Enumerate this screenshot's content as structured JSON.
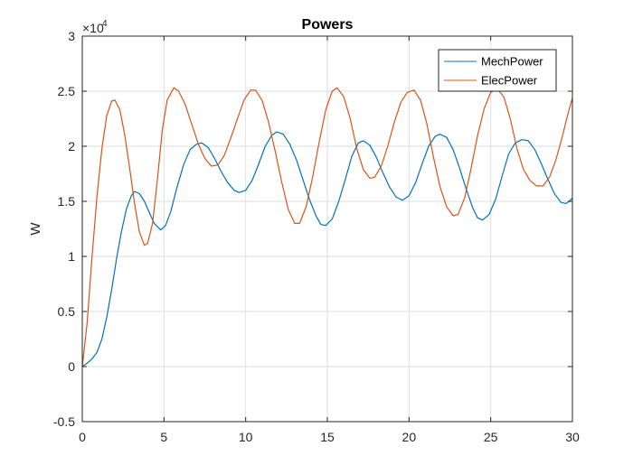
{
  "chart_data": {
    "type": "line",
    "title": "Powers",
    "xlabel": "",
    "ylabel": "W",
    "xlim": [
      0,
      30
    ],
    "ylim": [
      -5000,
      30000
    ],
    "x_ticks": [
      0,
      5,
      10,
      15,
      20,
      25,
      30
    ],
    "x_tick_labels": [
      "0",
      "5",
      "10",
      "15",
      "20",
      "25",
      "30"
    ],
    "y_ticks": [
      -5000,
      0,
      5000,
      10000,
      15000,
      20000,
      25000,
      30000
    ],
    "y_tick_labels": [
      "-0.5",
      "0",
      "0.5",
      "1",
      "1.5",
      "2",
      "2.5",
      "3"
    ],
    "y_exponent_base": "×10",
    "y_exponent_power": "4",
    "grid": true,
    "legend_position": "top-right",
    "series": [
      {
        "name": "MechPower",
        "color": "#0072BD",
        "points": [
          [
            0,
            0
          ],
          [
            0.3,
            300
          ],
          [
            0.6,
            700
          ],
          [
            0.9,
            1300
          ],
          [
            1.2,
            2500
          ],
          [
            1.5,
            4500
          ],
          [
            1.8,
            7000
          ],
          [
            2.1,
            9800
          ],
          [
            2.4,
            12300
          ],
          [
            2.7,
            14300
          ],
          [
            3.0,
            15500
          ],
          [
            3.2,
            15900
          ],
          [
            3.5,
            15700
          ],
          [
            3.8,
            15000
          ],
          [
            4.1,
            14000
          ],
          [
            4.4,
            13000
          ],
          [
            4.8,
            12400
          ],
          [
            5.1,
            12800
          ],
          [
            5.4,
            14000
          ],
          [
            5.8,
            16300
          ],
          [
            6.2,
            18300
          ],
          [
            6.6,
            19700
          ],
          [
            7.0,
            20200
          ],
          [
            7.3,
            20300
          ],
          [
            7.7,
            19900
          ],
          [
            8.1,
            18900
          ],
          [
            8.5,
            17700
          ],
          [
            8.9,
            16700
          ],
          [
            9.3,
            16000
          ],
          [
            9.6,
            15800
          ],
          [
            10.0,
            16000
          ],
          [
            10.4,
            16900
          ],
          [
            10.8,
            18400
          ],
          [
            11.2,
            20000
          ],
          [
            11.6,
            21000
          ],
          [
            11.9,
            21300
          ],
          [
            12.3,
            21100
          ],
          [
            12.7,
            20200
          ],
          [
            13.1,
            18800
          ],
          [
            13.5,
            17000
          ],
          [
            13.9,
            15200
          ],
          [
            14.3,
            13700
          ],
          [
            14.6,
            12900
          ],
          [
            14.9,
            12800
          ],
          [
            15.3,
            13400
          ],
          [
            15.7,
            15000
          ],
          [
            16.1,
            17000
          ],
          [
            16.5,
            19100
          ],
          [
            16.9,
            20300
          ],
          [
            17.2,
            20500
          ],
          [
            17.6,
            20100
          ],
          [
            18.0,
            19000
          ],
          [
            18.4,
            17600
          ],
          [
            18.8,
            16300
          ],
          [
            19.2,
            15400
          ],
          [
            19.6,
            15100
          ],
          [
            20.0,
            15500
          ],
          [
            20.4,
            16700
          ],
          [
            20.8,
            18400
          ],
          [
            21.2,
            20000
          ],
          [
            21.6,
            20900
          ],
          [
            21.9,
            21100
          ],
          [
            22.3,
            20800
          ],
          [
            22.7,
            19700
          ],
          [
            23.1,
            18000
          ],
          [
            23.5,
            16100
          ],
          [
            23.9,
            14400
          ],
          [
            24.2,
            13500
          ],
          [
            24.5,
            13300
          ],
          [
            24.9,
            13800
          ],
          [
            25.3,
            15200
          ],
          [
            25.7,
            17300
          ],
          [
            26.1,
            19300
          ],
          [
            26.5,
            20300
          ],
          [
            26.9,
            20600
          ],
          [
            27.3,
            20500
          ],
          [
            27.7,
            19700
          ],
          [
            28.1,
            18400
          ],
          [
            28.5,
            17000
          ],
          [
            28.9,
            15700
          ],
          [
            29.3,
            14900
          ],
          [
            29.6,
            14800
          ],
          [
            29.8,
            15000
          ],
          [
            30.0,
            15300
          ]
        ]
      },
      {
        "name": "ElecPower",
        "color": "#D95319",
        "points": [
          [
            0,
            0
          ],
          [
            0.3,
            4000
          ],
          [
            0.6,
            10000
          ],
          [
            0.9,
            15500
          ],
          [
            1.2,
            19800
          ],
          [
            1.5,
            22800
          ],
          [
            1.8,
            24100
          ],
          [
            2.0,
            24200
          ],
          [
            2.3,
            23300
          ],
          [
            2.6,
            21000
          ],
          [
            2.9,
            18000
          ],
          [
            3.2,
            14800
          ],
          [
            3.5,
            12200
          ],
          [
            3.8,
            11000
          ],
          [
            4.0,
            11200
          ],
          [
            4.3,
            13000
          ],
          [
            4.6,
            17000
          ],
          [
            4.9,
            21500
          ],
          [
            5.2,
            24200
          ],
          [
            5.6,
            25300
          ],
          [
            5.9,
            25000
          ],
          [
            6.3,
            23800
          ],
          [
            6.7,
            22000
          ],
          [
            7.1,
            20200
          ],
          [
            7.5,
            18900
          ],
          [
            7.9,
            18200
          ],
          [
            8.3,
            18300
          ],
          [
            8.7,
            19200
          ],
          [
            9.1,
            20800
          ],
          [
            9.5,
            22500
          ],
          [
            9.9,
            24200
          ],
          [
            10.3,
            25100
          ],
          [
            10.6,
            25100
          ],
          [
            11.0,
            24200
          ],
          [
            11.4,
            22200
          ],
          [
            11.8,
            19600
          ],
          [
            12.2,
            16800
          ],
          [
            12.6,
            14300
          ],
          [
            13.0,
            13000
          ],
          [
            13.3,
            13000
          ],
          [
            13.7,
            14500
          ],
          [
            14.1,
            17200
          ],
          [
            14.5,
            20400
          ],
          [
            14.9,
            23300
          ],
          [
            15.3,
            25000
          ],
          [
            15.6,
            25300
          ],
          [
            16.0,
            24500
          ],
          [
            16.4,
            22500
          ],
          [
            16.8,
            19800
          ],
          [
            17.2,
            17900
          ],
          [
            17.6,
            17100
          ],
          [
            17.9,
            17200
          ],
          [
            18.3,
            18200
          ],
          [
            18.7,
            20000
          ],
          [
            19.1,
            22200
          ],
          [
            19.5,
            24000
          ],
          [
            19.9,
            24900
          ],
          [
            20.3,
            25100
          ],
          [
            20.7,
            24200
          ],
          [
            21.1,
            22000
          ],
          [
            21.5,
            19000
          ],
          [
            21.9,
            16300
          ],
          [
            22.3,
            14500
          ],
          [
            22.7,
            13700
          ],
          [
            23.0,
            13800
          ],
          [
            23.4,
            15300
          ],
          [
            23.8,
            18000
          ],
          [
            24.2,
            21000
          ],
          [
            24.6,
            23400
          ],
          [
            25.0,
            24900
          ],
          [
            25.4,
            25200
          ],
          [
            25.8,
            24500
          ],
          [
            26.2,
            22500
          ],
          [
            26.6,
            19800
          ],
          [
            27.0,
            17900
          ],
          [
            27.4,
            16900
          ],
          [
            27.8,
            16400
          ],
          [
            28.2,
            16400
          ],
          [
            28.6,
            17200
          ],
          [
            29.0,
            18800
          ],
          [
            29.4,
            21000
          ],
          [
            29.7,
            22800
          ],
          [
            30.0,
            24400
          ]
        ]
      }
    ]
  }
}
